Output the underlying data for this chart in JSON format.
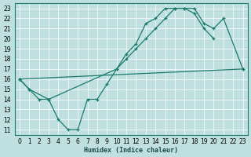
{
  "xlabel": "Humidex (Indice chaleur)",
  "bg_color": "#c0e0e0",
  "grid_color": "#ffffff",
  "line_color": "#1a7a6a",
  "xlim": [
    -0.5,
    23.5
  ],
  "ylim": [
    10.5,
    23.5
  ],
  "xticks": [
    0,
    1,
    2,
    3,
    4,
    5,
    6,
    7,
    8,
    9,
    10,
    11,
    12,
    13,
    14,
    15,
    16,
    17,
    18,
    19,
    20,
    21,
    22,
    23
  ],
  "yticks": [
    11,
    12,
    13,
    14,
    15,
    16,
    17,
    18,
    19,
    20,
    21,
    22,
    23
  ],
  "line1_x": [
    0,
    1,
    3,
    4,
    5,
    6,
    7,
    8,
    9,
    10,
    11,
    12,
    13,
    14,
    15,
    16,
    17,
    18,
    19,
    20
  ],
  "line1_y": [
    16,
    15,
    14,
    12,
    11,
    11,
    14,
    14,
    15.5,
    17,
    18.5,
    19.5,
    21.5,
    22,
    23,
    23,
    23,
    22.5,
    21,
    20
  ],
  "line2_x": [
    0,
    1,
    2,
    3,
    10,
    11,
    12,
    13,
    14,
    15,
    16,
    17,
    18,
    19,
    20,
    21,
    23
  ],
  "line2_y": [
    16,
    15,
    14,
    14,
    17,
    18,
    19,
    20,
    21,
    22,
    23,
    23,
    23,
    21.5,
    21,
    22,
    17
  ],
  "line3_x": [
    0,
    23
  ],
  "line3_y": [
    16,
    17
  ]
}
